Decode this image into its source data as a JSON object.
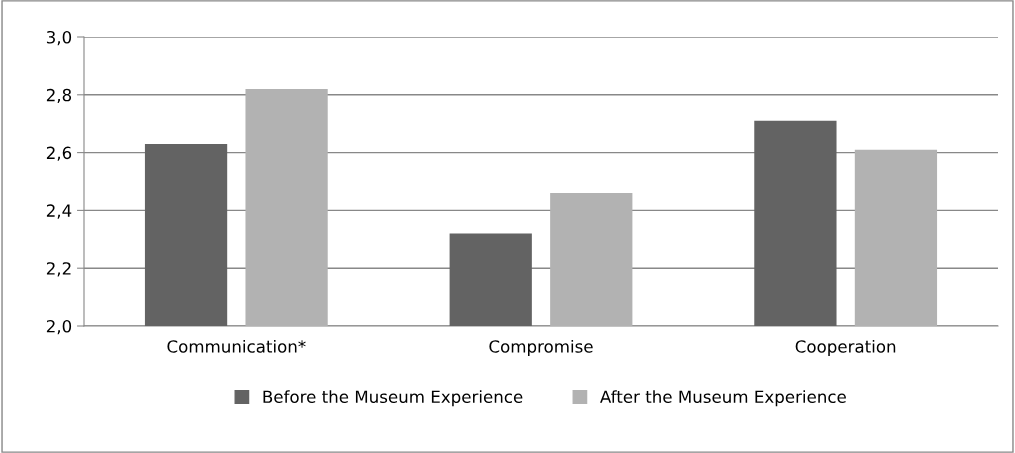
{
  "chart_data": {
    "type": "bar",
    "categories": [
      "Communication*",
      "Compromise",
      "Cooperation"
    ],
    "series": [
      {
        "name": "Before the Museum Experience",
        "color": "#636363",
        "values": [
          2.63,
          2.32,
          2.71
        ]
      },
      {
        "name": "After the Museum Experience",
        "color": "#b2b2b2",
        "values": [
          2.82,
          2.46,
          2.61
        ]
      }
    ],
    "ylim": [
      2.0,
      3.0
    ],
    "yticks": [
      {
        "value": 2.0,
        "label": "2,0"
      },
      {
        "value": 2.2,
        "label": "2,2"
      },
      {
        "value": 2.4,
        "label": "2,4"
      },
      {
        "value": 2.6,
        "label": "2,6"
      },
      {
        "value": 2.8,
        "label": "2,8"
      },
      {
        "value": 3.0,
        "label": "3,0"
      }
    ],
    "grid": "y",
    "legend": "bottom"
  }
}
